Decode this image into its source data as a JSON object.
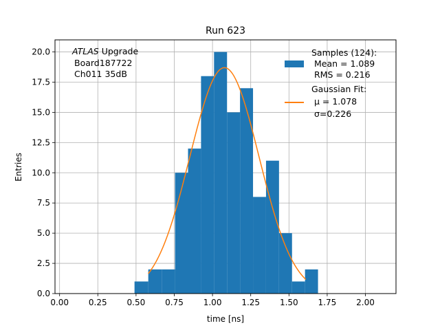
{
  "chart_data": {
    "type": "bar",
    "title": "Run 623",
    "xlabel": "time [ns]",
    "ylabel": "Entries",
    "xlim": [
      -0.03,
      2.2
    ],
    "ylim": [
      0,
      21
    ],
    "grid": true,
    "xticks": [
      0.0,
      0.25,
      0.5,
      0.75,
      1.0,
      1.25,
      1.5,
      1.75,
      2.0
    ],
    "xtick_labels": [
      "0.00",
      "0.25",
      "0.50",
      "0.75",
      "1.00",
      "1.25",
      "1.50",
      "1.75",
      "2.00"
    ],
    "yticks": [
      0,
      2.5,
      5,
      7.5,
      10,
      12.5,
      15,
      17.5,
      20
    ],
    "ytick_labels": [
      "0.0",
      "2.5",
      "5.0",
      "7.5",
      "10.0",
      "12.5",
      "15.0",
      "17.5",
      "20.0"
    ],
    "annotation": {
      "prefix": "ATLAS",
      "lines": [
        "Upgrade",
        "Board187722",
        "Ch011 35dB"
      ]
    },
    "histogram": {
      "color": "#1f77b4",
      "bin_edges": [
        0.49,
        0.58,
        0.67,
        0.755,
        0.84,
        0.925,
        1.01,
        1.095,
        1.18,
        1.265,
        1.35,
        1.435,
        1.52,
        1.605,
        1.69
      ],
      "counts": [
        1,
        2,
        2,
        10,
        12,
        18,
        20,
        15,
        17,
        8,
        11,
        5,
        1,
        2
      ]
    },
    "fit": {
      "color": "#ff7f0e",
      "x_range": [
        0.58,
        1.61
      ],
      "amplitude": 18.7,
      "mu": 1.078,
      "sigma": 0.226
    },
    "legend": {
      "position": "top-right",
      "samples_lines": [
        "Samples (124):",
        " Mean = 1.089",
        " RMS = 0.216"
      ],
      "fit_lines": [
        "Gaussian Fit:",
        " μ = 1.078",
        " σ=0.226"
      ]
    }
  }
}
